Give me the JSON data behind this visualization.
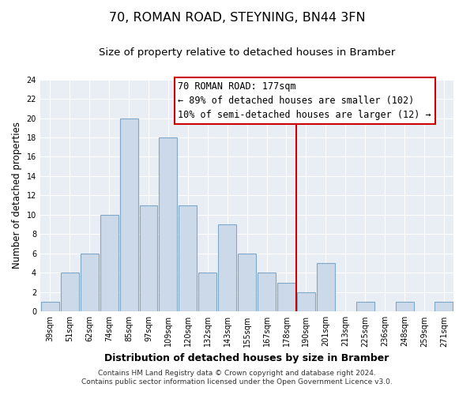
{
  "title": "70, ROMAN ROAD, STEYNING, BN44 3FN",
  "subtitle": "Size of property relative to detached houses in Bramber",
  "xlabel": "Distribution of detached houses by size in Bramber",
  "ylabel": "Number of detached properties",
  "bar_labels": [
    "39sqm",
    "51sqm",
    "62sqm",
    "74sqm",
    "85sqm",
    "97sqm",
    "109sqm",
    "120sqm",
    "132sqm",
    "143sqm",
    "155sqm",
    "167sqm",
    "178sqm",
    "190sqm",
    "201sqm",
    "213sqm",
    "225sqm",
    "236sqm",
    "248sqm",
    "259sqm",
    "271sqm"
  ],
  "bar_values": [
    1,
    4,
    6,
    10,
    20,
    11,
    18,
    11,
    4,
    9,
    6,
    4,
    3,
    2,
    5,
    0,
    1,
    0,
    1,
    0,
    1
  ],
  "bar_color": "#ccd9e8",
  "bar_edge_color": "#7fa8c8",
  "plot_bg_color": "#e8eef4",
  "grid_color": "#ffffff",
  "vline_x": 12.5,
  "vline_color": "#cc0000",
  "annotation_title": "70 ROMAN ROAD: 177sqm",
  "annotation_line1": "← 89% of detached houses are smaller (102)",
  "annotation_line2": "10% of semi-detached houses are larger (12) →",
  "annotation_box_color": "#ffffff",
  "annotation_border_color": "#cc0000",
  "footer1": "Contains HM Land Registry data © Crown copyright and database right 2024.",
  "footer2": "Contains public sector information licensed under the Open Government Licence v3.0.",
  "ylim": [
    0,
    24
  ],
  "yticks": [
    0,
    2,
    4,
    6,
    8,
    10,
    12,
    14,
    16,
    18,
    20,
    22,
    24
  ],
  "title_fontsize": 11.5,
  "subtitle_fontsize": 9.5,
  "xlabel_fontsize": 9,
  "ylabel_fontsize": 8.5,
  "tick_fontsize": 7,
  "annotation_fontsize": 8.5,
  "footer_fontsize": 6.5
}
